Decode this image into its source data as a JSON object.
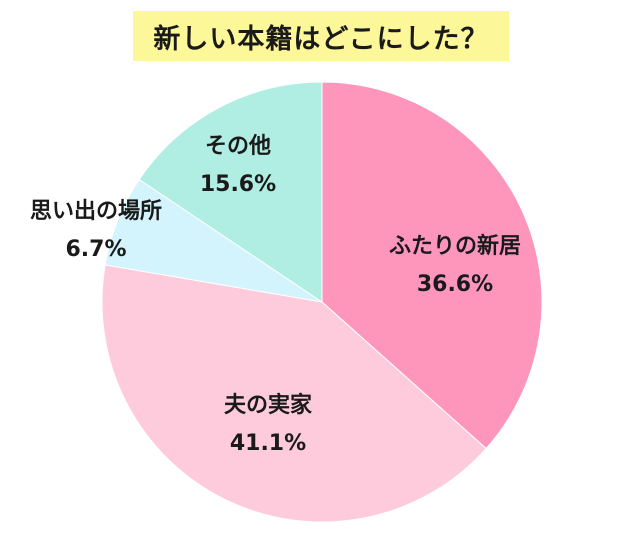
{
  "chart_data": {
    "type": "pie",
    "title": "新しい本籍はどこにした？",
    "slices": [
      {
        "label": "ふたりの新居",
        "value": 36.6,
        "value_text": "36.6%",
        "color": "#fe96bc"
      },
      {
        "label": "夫の実家",
        "value": 41.1,
        "value_text": "41.1%",
        "color": "#fecbdc"
      },
      {
        "label": "思い出の場所",
        "value": 6.7,
        "value_text": "6.7%",
        "color": "#d3f3fd"
      },
      {
        "label": "その他",
        "value": 15.6,
        "value_text": "15.6%",
        "color": "#b0ede2"
      }
    ]
  }
}
